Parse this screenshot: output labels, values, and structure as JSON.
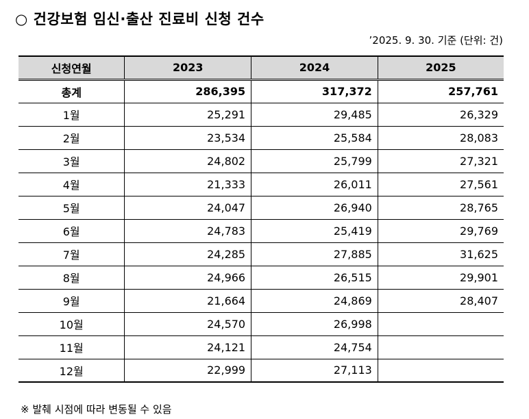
{
  "title": "○ 건강보험 임신·출산 진료비 신청 건수",
  "basis": "’2025. 9. 30. 기준 (단위: 건)",
  "table": {
    "header": [
      "신청연월",
      "2023",
      "2024",
      "2025"
    ],
    "rows": [
      [
        "총계",
        "286,395",
        "317,372",
        "257,761"
      ],
      [
        "1월",
        "25,291",
        "29,485",
        "26,329"
      ],
      [
        "2월",
        "23,534",
        "25,584",
        "28,083"
      ],
      [
        "3월",
        "24,802",
        "25,799",
        "27,321"
      ],
      [
        "4월",
        "21,333",
        "26,011",
        "27,561"
      ],
      [
        "5월",
        "24,047",
        "26,940",
        "28,765"
      ],
      [
        "6월",
        "24,783",
        "25,419",
        "29,769"
      ],
      [
        "7월",
        "24,285",
        "27,885",
        "31,625"
      ],
      [
        "8월",
        "24,966",
        "26,515",
        "29,901"
      ],
      [
        "9월",
        "21,664",
        "24,869",
        "28,407"
      ],
      [
        "10월",
        "24,570",
        "26,998"
      ],
      [
        "11월",
        "24,121",
        "24,754"
      ],
      [
        "12월",
        "22,999",
        "27,113"
      ]
    ]
  },
  "footnote": "※ 발췌 시점에 따라 변동될 수 있음"
}
